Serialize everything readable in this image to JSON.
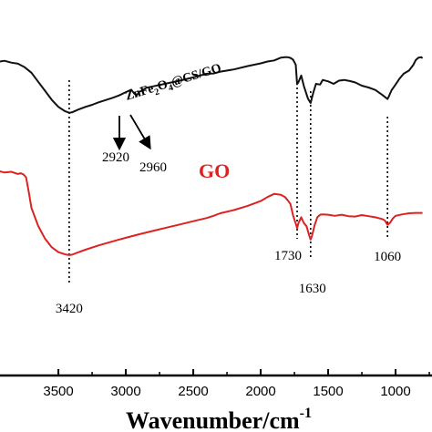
{
  "chart_data": {
    "type": "line",
    "title": "",
    "xlabel": "Wavenumber/cm",
    "xlabel_sup": "-1",
    "ylabel": "",
    "x_reversed": true,
    "xlim": [
      4000,
      800
    ],
    "ylim": [
      0,
      100
    ],
    "xticks": [
      {
        "value": 3500,
        "label": "3500"
      },
      {
        "value": 3000,
        "label": "3000"
      },
      {
        "value": 2500,
        "label": "2500"
      },
      {
        "value": 2000,
        "label": "2000"
      },
      {
        "value": 1500,
        "label": "1500"
      },
      {
        "value": 1000,
        "label": "1000"
      }
    ],
    "grid": false,
    "series": [
      {
        "label_main": "ZnFe",
        "label_sub1": "2",
        "label_mid": "O",
        "label_sub2": "4",
        "label_tail": "@CS/GO",
        "color": "#111111",
        "x": [
          4000,
          3950,
          3900,
          3850,
          3800,
          3750,
          3700,
          3650,
          3600,
          3550,
          3500,
          3450,
          3420,
          3400,
          3350,
          3300,
          3250,
          3200,
          3150,
          3100,
          3050,
          3000,
          2960,
          2940,
          2920,
          2900,
          2880,
          2850,
          2800,
          2700,
          2600,
          2500,
          2400,
          2350,
          2300,
          2200,
          2100,
          2000,
          1950,
          1900,
          1850,
          1820,
          1800,
          1780,
          1760,
          1740,
          1730,
          1720,
          1700,
          1680,
          1650,
          1630,
          1610,
          1590,
          1560,
          1540,
          1500,
          1460,
          1420,
          1380,
          1340,
          1300,
          1250,
          1200,
          1150,
          1100,
          1070,
          1060,
          1050,
          1030,
          1000,
          970,
          940,
          900,
          870,
          850,
          830,
          810,
          800
        ],
        "y": [
          87.2,
          87.0,
          87.3,
          86.8,
          86.5,
          85.5,
          84.0,
          81.5,
          79.0,
          76.5,
          74.5,
          73.3,
          72.9,
          73.0,
          73.8,
          74.5,
          75.1,
          75.8,
          76.4,
          77.0,
          77.7,
          78.6,
          79.3,
          78.3,
          77.7,
          78.7,
          79.0,
          79.8,
          80.2,
          81.0,
          81.8,
          82.7,
          83.7,
          83.8,
          84.3,
          84.9,
          85.8,
          86.6,
          87.1,
          87.4,
          88.2,
          88.3,
          88.3,
          88.1,
          87.6,
          86.2,
          80.8,
          81.4,
          83.2,
          80.3,
          76.8,
          75.6,
          78.5,
          80.9,
          80.7,
          82.0,
          81.6,
          80.9,
          81.8,
          82.0,
          81.7,
          81.3,
          80.4,
          79.9,
          79.2,
          77.9,
          77.0,
          76.7,
          77.4,
          79.1,
          80.7,
          82.4,
          83.7,
          84.6,
          86.1,
          87.5,
          88.2,
          88.3,
          88.0
        ]
      },
      {
        "label": "GO",
        "color": "#dd2222",
        "x": [
          4000,
          3950,
          3900,
          3850,
          3800,
          3780,
          3760,
          3740,
          3720,
          3700,
          3650,
          3600,
          3550,
          3500,
          3450,
          3420,
          3400,
          3350,
          3300,
          3200,
          3100,
          3000,
          2900,
          2800,
          2700,
          2600,
          2500,
          2400,
          2350,
          2300,
          2200,
          2100,
          2000,
          1950,
          1900,
          1850,
          1820,
          1800,
          1780,
          1760,
          1740,
          1730,
          1720,
          1700,
          1680,
          1660,
          1640,
          1630,
          1620,
          1600,
          1580,
          1560,
          1540,
          1500,
          1450,
          1400,
          1350,
          1300,
          1250,
          1200,
          1150,
          1100,
          1080,
          1060,
          1040,
          1020,
          1000,
          950,
          900,
          850,
          800
        ],
        "y": [
          56.6,
          56.8,
          56.3,
          56.5,
          55.9,
          56.1,
          55.8,
          55.0,
          51.0,
          46.5,
          41.5,
          38.0,
          35.6,
          34.2,
          33.6,
          33.4,
          33.5,
          34.2,
          34.9,
          36.1,
          37.2,
          38.2,
          39.2,
          40.1,
          41.0,
          41.9,
          42.8,
          43.7,
          44.3,
          45.0,
          45.9,
          47.0,
          48.4,
          49.5,
          50.4,
          50.1,
          49.5,
          48.6,
          47.6,
          44.4,
          42.1,
          40.9,
          42.3,
          43.9,
          42.3,
          41.4,
          38.8,
          37.7,
          38.7,
          41.8,
          43.9,
          44.6,
          44.7,
          44.6,
          44.3,
          44.6,
          44.2,
          44.1,
          44.5,
          44.2,
          43.9,
          43.4,
          43.0,
          41.8,
          42.4,
          43.6,
          44.3,
          44.7,
          45.0,
          45.1,
          45.1
        ]
      }
    ],
    "annotations": [
      {
        "text": "3420",
        "x": 3420
      },
      {
        "text": "2920",
        "x": 2920
      },
      {
        "text": "2960",
        "x": 2960
      },
      {
        "text": "1730",
        "x": 1730
      },
      {
        "text": "1630",
        "x": 1630
      },
      {
        "text": "1060",
        "x": 1060
      }
    ]
  }
}
